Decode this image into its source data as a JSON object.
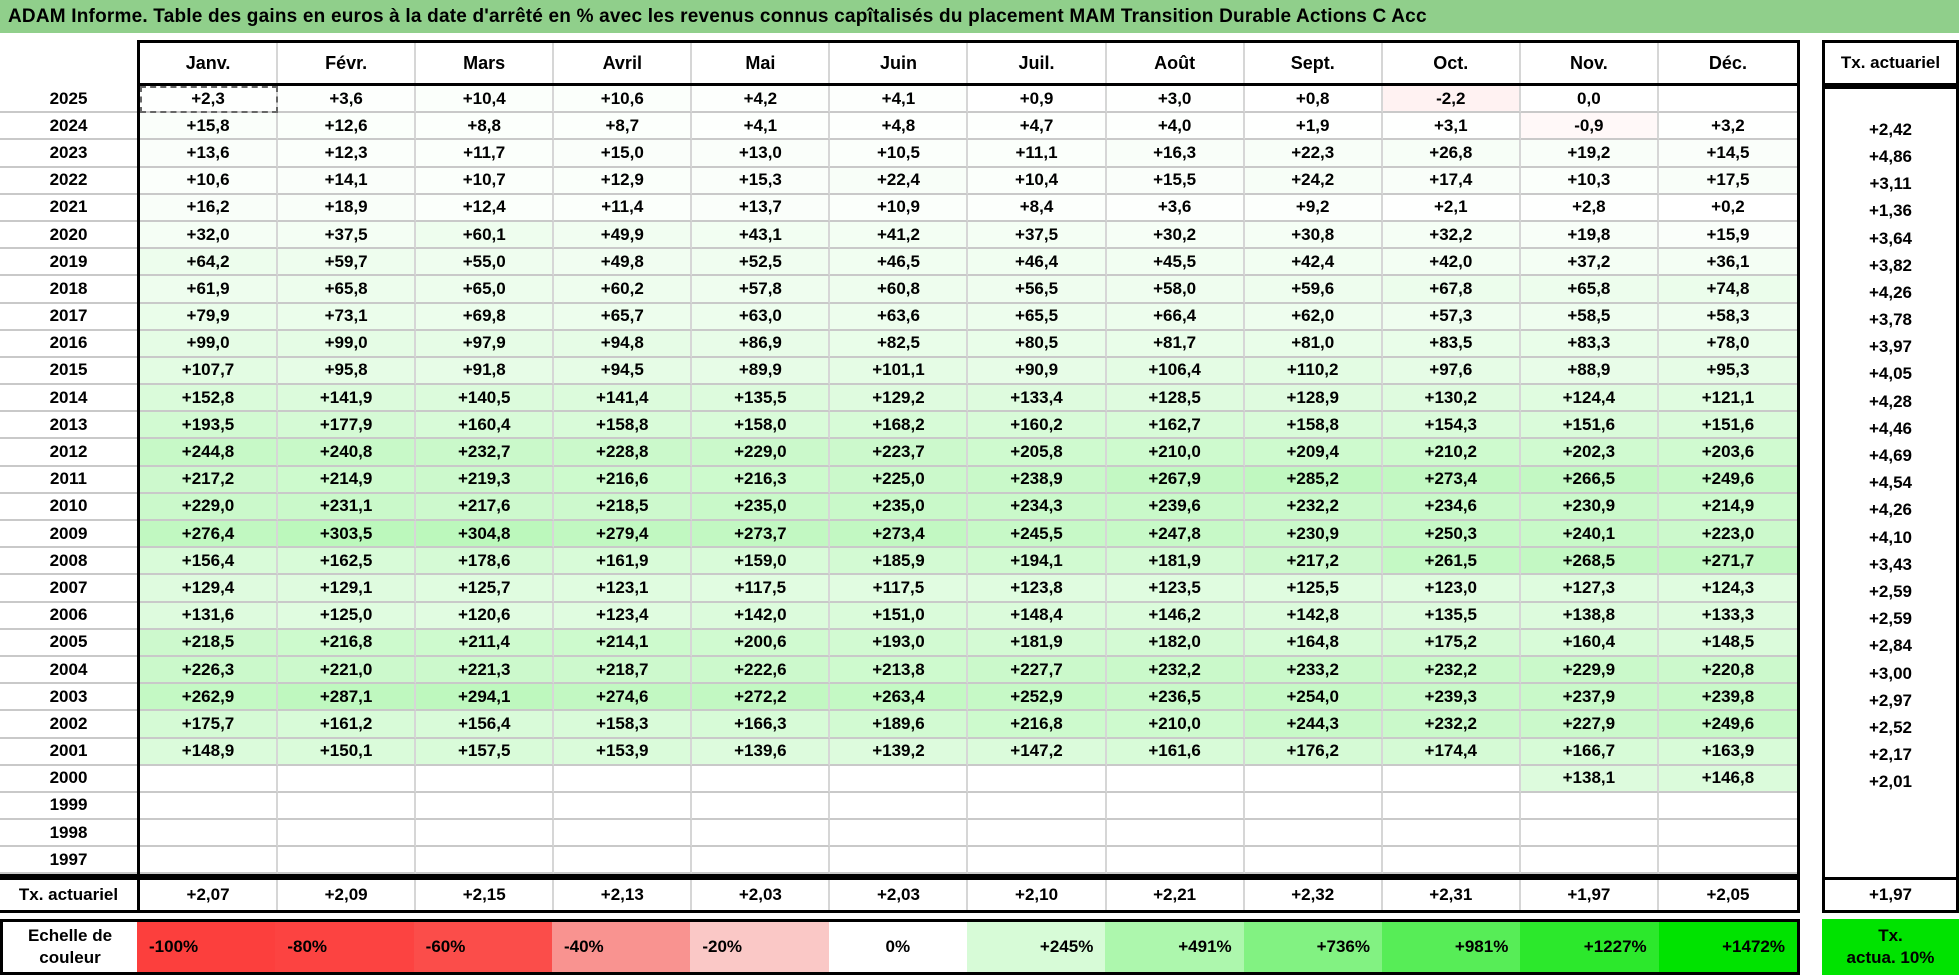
{
  "title": "ADAM Informe. Table des gains en euros à la date d'arrêté en % avec les revenus connus capîtalisés du placement MAM Transition Durable Actions C Acc",
  "colors": {
    "title_bg": "#90cf8b",
    "green_max": "#00e300",
    "red_max": "#fc3f3d",
    "blank": "#ffffff"
  },
  "right_column": {
    "header": "Tx. actuariel",
    "bottom_value": "+1,97",
    "green_cell_line1": "Tx.",
    "green_cell_line2": "actua. 10%",
    "green_cell_color": "#00e300"
  },
  "chart_data": {
    "type": "heatmap",
    "title": "ADAM Informe. Table des gains en euros à la date d'arrêté en % avec les revenus connus capîtalisés du placement MAM Transition Durable Actions C Acc",
    "months": [
      "Janv.",
      "Févr.",
      "Mars",
      "Avril",
      "Mai",
      "Juin",
      "Juil.",
      "Août",
      "Sept.",
      "Oct.",
      "Nov.",
      "Déc."
    ],
    "rows": [
      {
        "year": "2025",
        "values": [
          "+2,3",
          "+3,6",
          "+10,4",
          "+10,6",
          "+4,2",
          "+4,1",
          "+0,9",
          "+3,0",
          "+0,8",
          "-2,2",
          "0,0",
          null
        ],
        "tx": null
      },
      {
        "year": "2024",
        "values": [
          "+15,8",
          "+12,6",
          "+8,8",
          "+8,7",
          "+4,1",
          "+4,8",
          "+4,7",
          "+4,0",
          "+1,9",
          "+3,1",
          "-0,9",
          "+3,2"
        ],
        "tx": "+2,42"
      },
      {
        "year": "2023",
        "values": [
          "+13,6",
          "+12,3",
          "+11,7",
          "+15,0",
          "+13,0",
          "+10,5",
          "+11,1",
          "+16,3",
          "+22,3",
          "+26,8",
          "+19,2",
          "+14,5"
        ],
        "tx": "+4,86"
      },
      {
        "year": "2022",
        "values": [
          "+10,6",
          "+14,1",
          "+10,7",
          "+12,9",
          "+15,3",
          "+22,4",
          "+10,4",
          "+15,5",
          "+24,2",
          "+17,4",
          "+10,3",
          "+17,5"
        ],
        "tx": "+3,11"
      },
      {
        "year": "2021",
        "values": [
          "+16,2",
          "+18,9",
          "+12,4",
          "+11,4",
          "+13,7",
          "+10,9",
          "+8,4",
          "+3,6",
          "+9,2",
          "+2,1",
          "+2,8",
          "+0,2"
        ],
        "tx": "+1,36"
      },
      {
        "year": "2020",
        "values": [
          "+32,0",
          "+37,5",
          "+60,1",
          "+49,9",
          "+43,1",
          "+41,2",
          "+37,5",
          "+30,2",
          "+30,8",
          "+32,2",
          "+19,8",
          "+15,9"
        ],
        "tx": "+3,64"
      },
      {
        "year": "2019",
        "values": [
          "+64,2",
          "+59,7",
          "+55,0",
          "+49,8",
          "+52,5",
          "+46,5",
          "+46,4",
          "+45,5",
          "+42,4",
          "+42,0",
          "+37,2",
          "+36,1"
        ],
        "tx": "+3,82"
      },
      {
        "year": "2018",
        "values": [
          "+61,9",
          "+65,8",
          "+65,0",
          "+60,2",
          "+57,8",
          "+60,8",
          "+56,5",
          "+58,0",
          "+59,6",
          "+67,8",
          "+65,8",
          "+74,8"
        ],
        "tx": "+4,26"
      },
      {
        "year": "2017",
        "values": [
          "+79,9",
          "+73,1",
          "+69,8",
          "+65,7",
          "+63,0",
          "+63,6",
          "+65,5",
          "+66,4",
          "+62,0",
          "+57,3",
          "+58,5",
          "+58,3"
        ],
        "tx": "+3,78"
      },
      {
        "year": "2016",
        "values": [
          "+99,0",
          "+99,0",
          "+97,9",
          "+94,8",
          "+86,9",
          "+82,5",
          "+80,5",
          "+81,7",
          "+81,0",
          "+83,5",
          "+83,3",
          "+78,0"
        ],
        "tx": "+3,97"
      },
      {
        "year": "2015",
        "values": [
          "+107,7",
          "+95,8",
          "+91,8",
          "+94,5",
          "+89,9",
          "+101,1",
          "+90,9",
          "+106,4",
          "+110,2",
          "+97,6",
          "+88,9",
          "+95,3"
        ],
        "tx": "+4,05"
      },
      {
        "year": "2014",
        "values": [
          "+152,8",
          "+141,9",
          "+140,5",
          "+141,4",
          "+135,5",
          "+129,2",
          "+133,4",
          "+128,5",
          "+128,9",
          "+130,2",
          "+124,4",
          "+121,1"
        ],
        "tx": "+4,28"
      },
      {
        "year": "2013",
        "values": [
          "+193,5",
          "+177,9",
          "+160,4",
          "+158,8",
          "+158,0",
          "+168,2",
          "+160,2",
          "+162,7",
          "+158,8",
          "+154,3",
          "+151,6",
          "+151,6"
        ],
        "tx": "+4,46"
      },
      {
        "year": "2012",
        "values": [
          "+244,8",
          "+240,8",
          "+232,7",
          "+228,8",
          "+229,0",
          "+223,7",
          "+205,8",
          "+210,0",
          "+209,4",
          "+210,2",
          "+202,3",
          "+203,6"
        ],
        "tx": "+4,69"
      },
      {
        "year": "2011",
        "values": [
          "+217,2",
          "+214,9",
          "+219,3",
          "+216,6",
          "+216,3",
          "+225,0",
          "+238,9",
          "+267,9",
          "+285,2",
          "+273,4",
          "+266,5",
          "+249,6"
        ],
        "tx": "+4,54"
      },
      {
        "year": "2010",
        "values": [
          "+229,0",
          "+231,1",
          "+217,6",
          "+218,5",
          "+235,0",
          "+235,0",
          "+234,3",
          "+239,6",
          "+232,2",
          "+234,6",
          "+230,9",
          "+214,9"
        ],
        "tx": "+4,26"
      },
      {
        "year": "2009",
        "values": [
          "+276,4",
          "+303,5",
          "+304,8",
          "+279,4",
          "+273,7",
          "+273,4",
          "+245,5",
          "+247,8",
          "+230,9",
          "+250,3",
          "+240,1",
          "+223,0"
        ],
        "tx": "+4,10"
      },
      {
        "year": "2008",
        "values": [
          "+156,4",
          "+162,5",
          "+178,6",
          "+161,9",
          "+159,0",
          "+185,9",
          "+194,1",
          "+181,9",
          "+217,2",
          "+261,5",
          "+268,5",
          "+271,7"
        ],
        "tx": "+3,43"
      },
      {
        "year": "2007",
        "values": [
          "+129,4",
          "+129,1",
          "+125,7",
          "+123,1",
          "+117,5",
          "+117,5",
          "+123,8",
          "+123,5",
          "+125,5",
          "+123,0",
          "+127,3",
          "+124,3"
        ],
        "tx": "+2,59"
      },
      {
        "year": "2006",
        "values": [
          "+131,6",
          "+125,0",
          "+120,6",
          "+123,4",
          "+142,0",
          "+151,0",
          "+148,4",
          "+146,2",
          "+142,8",
          "+135,5",
          "+138,8",
          "+133,3"
        ],
        "tx": "+2,59"
      },
      {
        "year": "2005",
        "values": [
          "+218,5",
          "+216,8",
          "+211,4",
          "+214,1",
          "+200,6",
          "+193,0",
          "+181,9",
          "+182,0",
          "+164,8",
          "+175,2",
          "+160,4",
          "+148,5"
        ],
        "tx": "+2,84"
      },
      {
        "year": "2004",
        "values": [
          "+226,3",
          "+221,0",
          "+221,3",
          "+218,7",
          "+222,6",
          "+213,8",
          "+227,7",
          "+232,2",
          "+233,2",
          "+232,2",
          "+229,9",
          "+220,8"
        ],
        "tx": "+3,00"
      },
      {
        "year": "2003",
        "values": [
          "+262,9",
          "+287,1",
          "+294,1",
          "+274,6",
          "+272,2",
          "+263,4",
          "+252,9",
          "+236,5",
          "+254,0",
          "+239,3",
          "+237,9",
          "+239,8"
        ],
        "tx": "+2,97"
      },
      {
        "year": "2002",
        "values": [
          "+175,7",
          "+161,2",
          "+156,4",
          "+158,3",
          "+166,3",
          "+189,6",
          "+216,8",
          "+210,0",
          "+244,3",
          "+232,2",
          "+227,9",
          "+249,6"
        ],
        "tx": "+2,52"
      },
      {
        "year": "2001",
        "values": [
          "+148,9",
          "+150,1",
          "+157,5",
          "+153,9",
          "+139,6",
          "+139,2",
          "+147,2",
          "+161,6",
          "+176,2",
          "+174,4",
          "+166,7",
          "+163,9"
        ],
        "tx": "+2,17"
      },
      {
        "year": "2000",
        "values": [
          null,
          null,
          null,
          null,
          null,
          null,
          null,
          null,
          null,
          null,
          "+138,1",
          "+146,8"
        ],
        "tx": "+2,01"
      },
      {
        "year": "1999",
        "values": [
          null,
          null,
          null,
          null,
          null,
          null,
          null,
          null,
          null,
          null,
          null,
          null
        ],
        "tx": null
      },
      {
        "year": "1998",
        "values": [
          null,
          null,
          null,
          null,
          null,
          null,
          null,
          null,
          null,
          null,
          null,
          null
        ],
        "tx": null
      },
      {
        "year": "1997",
        "values": [
          null,
          null,
          null,
          null,
          null,
          null,
          null,
          null,
          null,
          null,
          null,
          null
        ],
        "tx": null
      }
    ],
    "tx_row": {
      "label": "Tx. actuariel",
      "values": [
        "+2,07",
        "+2,09",
        "+2,15",
        "+2,13",
        "+2,03",
        "+2,03",
        "+2,10",
        "+2,21",
        "+2,32",
        "+2,31",
        "+1,97",
        "+2,05"
      ],
      "tx": "+1,97"
    },
    "legend": {
      "label_line1": "Echelle de",
      "label_line2": "couleur",
      "entries": [
        {
          "label": "-100%",
          "color": "#fc3f3d",
          "align": "left"
        },
        {
          "label": "-80%",
          "color": "#fc4341",
          "align": "left"
        },
        {
          "label": "-60%",
          "color": "#fb4d4a",
          "align": "left"
        },
        {
          "label": "-40%",
          "color": "#f99390",
          "align": "left"
        },
        {
          "label": "-20%",
          "color": "#fac8c6",
          "align": "left"
        },
        {
          "label": "0%",
          "color": "#ffffff",
          "align": "center"
        },
        {
          "label": "+245%",
          "color": "#d7fbd7",
          "align": "right"
        },
        {
          "label": "+491%",
          "color": "#adf7ad",
          "align": "right"
        },
        {
          "label": "+736%",
          "color": "#82f282",
          "align": "right"
        },
        {
          "label": "+981%",
          "color": "#57ed57",
          "align": "right"
        },
        {
          "label": "+1227%",
          "color": "#2ce82c",
          "align": "right"
        },
        {
          "label": "+1472%",
          "color": "#00e300",
          "align": "right"
        }
      ],
      "axis_ranges": {
        "negative_full_red_at": -100,
        "positive_full_green_at": 1472
      }
    }
  }
}
